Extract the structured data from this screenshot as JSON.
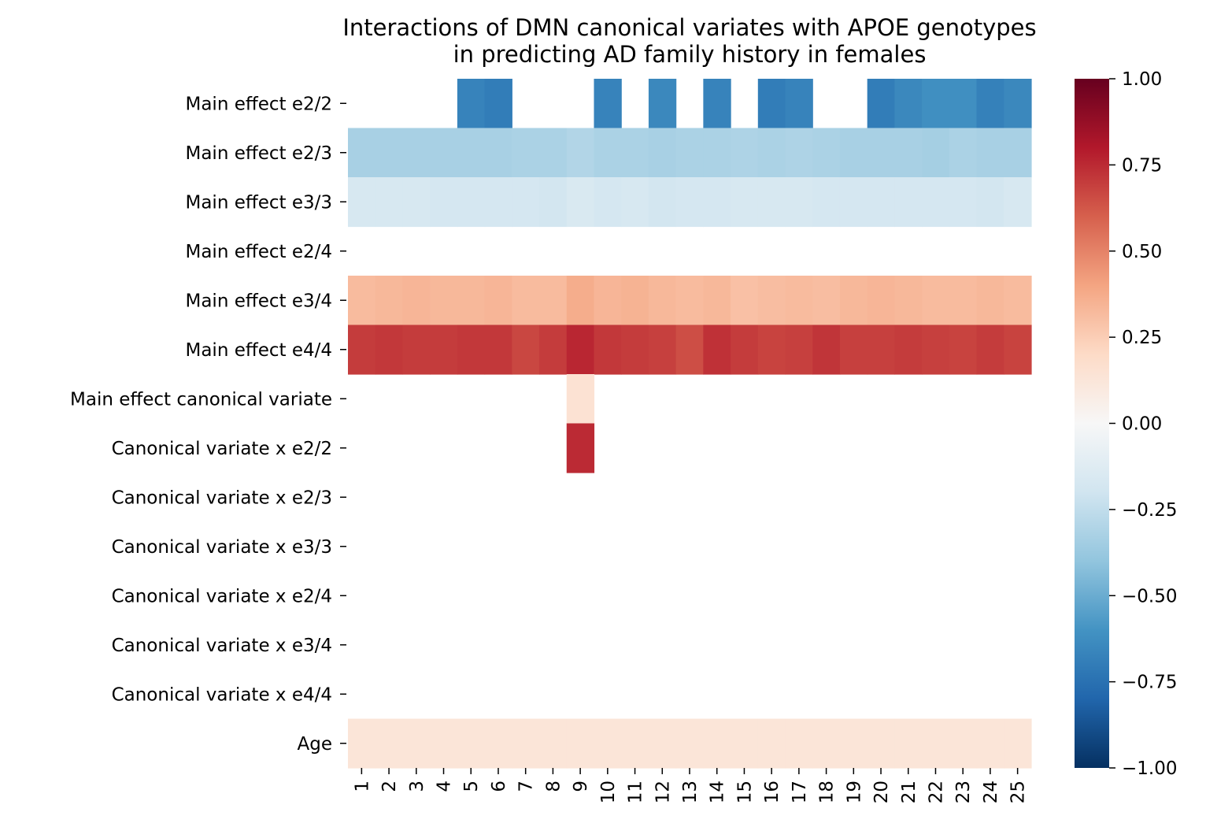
{
  "chart_data": {
    "type": "heatmap",
    "title": "Interactions of DMN canonical variates with APOE genotypes\nin predicting AD family history in females",
    "xlabel": "",
    "ylabel": "",
    "x_categories": [
      "1",
      "2",
      "3",
      "4",
      "5",
      "6",
      "7",
      "8",
      "9",
      "10",
      "11",
      "12",
      "13",
      "14",
      "15",
      "16",
      "17",
      "18",
      "19",
      "20",
      "21",
      "22",
      "23",
      "24",
      "25"
    ],
    "y_categories": [
      "Main effect e2/2",
      "Main effect e2/3",
      "Main effect e3/3",
      "Main effect e2/4",
      "Main effect e3/4",
      "Main effect e4/4",
      "Main effect canonical variate",
      "Canonical variate x e2/2",
      "Canonical variate x e2/3",
      "Canonical variate x e3/3",
      "Canonical variate x e2/4",
      "Canonical variate x e3/4",
      "Canonical variate x e4/4",
      "Age"
    ],
    "values": [
      [
        null,
        null,
        null,
        null,
        -0.67,
        -0.7,
        null,
        null,
        null,
        -0.67,
        null,
        -0.65,
        null,
        -0.67,
        null,
        -0.7,
        -0.67,
        null,
        null,
        -0.7,
        -0.65,
        -0.62,
        -0.62,
        -0.68,
        -0.65
      ],
      [
        -0.33,
        -0.33,
        -0.33,
        -0.33,
        -0.33,
        -0.33,
        -0.32,
        -0.32,
        -0.3,
        -0.32,
        -0.32,
        -0.33,
        -0.32,
        -0.32,
        -0.31,
        -0.32,
        -0.31,
        -0.32,
        -0.33,
        -0.33,
        -0.33,
        -0.34,
        -0.32,
        -0.33,
        -0.33
      ],
      [
        -0.17,
        -0.17,
        -0.17,
        -0.18,
        -0.18,
        -0.18,
        -0.18,
        -0.19,
        -0.16,
        -0.18,
        -0.17,
        -0.19,
        -0.18,
        -0.18,
        -0.17,
        -0.17,
        -0.17,
        -0.18,
        -0.18,
        -0.18,
        -0.18,
        -0.18,
        -0.18,
        -0.19,
        -0.17
      ],
      [
        null,
        null,
        null,
        null,
        null,
        null,
        null,
        null,
        null,
        null,
        null,
        null,
        null,
        null,
        null,
        null,
        null,
        null,
        null,
        null,
        null,
        null,
        null,
        null,
        null
      ],
      [
        0.32,
        0.33,
        0.34,
        0.33,
        0.33,
        0.34,
        0.32,
        0.32,
        0.37,
        0.34,
        0.35,
        0.33,
        0.32,
        0.33,
        0.3,
        0.31,
        0.32,
        0.31,
        0.33,
        0.34,
        0.33,
        0.32,
        0.32,
        0.33,
        0.32
      ],
      [
        0.7,
        0.71,
        0.7,
        0.7,
        0.71,
        0.71,
        0.67,
        0.7,
        0.76,
        0.71,
        0.7,
        0.69,
        0.65,
        0.73,
        0.7,
        0.68,
        0.69,
        0.72,
        0.69,
        0.69,
        0.7,
        0.69,
        0.68,
        0.7,
        0.68
      ],
      [
        null,
        null,
        null,
        null,
        null,
        null,
        null,
        null,
        0.15,
        null,
        null,
        null,
        null,
        null,
        null,
        null,
        null,
        null,
        null,
        null,
        null,
        null,
        null,
        null,
        null
      ],
      [
        null,
        null,
        null,
        null,
        null,
        null,
        null,
        null,
        0.75,
        null,
        null,
        null,
        null,
        null,
        null,
        null,
        null,
        null,
        null,
        null,
        null,
        null,
        null,
        null,
        null
      ],
      [
        null,
        null,
        null,
        null,
        null,
        null,
        null,
        null,
        null,
        null,
        null,
        null,
        null,
        null,
        null,
        null,
        null,
        null,
        null,
        null,
        null,
        null,
        null,
        null,
        null
      ],
      [
        null,
        null,
        null,
        null,
        null,
        null,
        null,
        null,
        null,
        null,
        null,
        null,
        null,
        null,
        null,
        null,
        null,
        null,
        null,
        null,
        null,
        null,
        null,
        null,
        null
      ],
      [
        null,
        null,
        null,
        null,
        null,
        null,
        null,
        null,
        null,
        null,
        null,
        null,
        null,
        null,
        null,
        null,
        null,
        null,
        null,
        null,
        null,
        null,
        null,
        null,
        null
      ],
      [
        null,
        null,
        null,
        null,
        null,
        null,
        null,
        null,
        null,
        null,
        null,
        null,
        null,
        null,
        null,
        null,
        null,
        null,
        null,
        null,
        null,
        null,
        null,
        null,
        null
      ],
      [
        null,
        null,
        null,
        null,
        null,
        null,
        null,
        null,
        null,
        null,
        null,
        null,
        null,
        null,
        null,
        null,
        null,
        null,
        null,
        null,
        null,
        null,
        null,
        null,
        null
      ],
      [
        0.13,
        0.13,
        0.13,
        0.13,
        0.13,
        0.13,
        0.13,
        0.13,
        0.13,
        0.13,
        0.13,
        0.13,
        0.13,
        0.13,
        0.13,
        0.13,
        0.13,
        0.13,
        0.13,
        0.13,
        0.13,
        0.13,
        0.13,
        0.13,
        0.13
      ]
    ],
    "colormap": "RdBu_r",
    "colorbar": {
      "vmin": -1.0,
      "vmax": 1.0,
      "ticks": [
        1.0,
        0.75,
        0.5,
        0.25,
        0.0,
        -0.25,
        -0.5,
        -0.75,
        -1.0
      ],
      "tick_labels": [
        "1.00",
        "0.75",
        "0.50",
        "0.25",
        "0.00",
        "−0.25",
        "−0.50",
        "−0.75",
        "−1.00"
      ]
    },
    "grid": false,
    "colormap_stops": [
      "#053061",
      "#2166ac",
      "#4393c3",
      "#92c5de",
      "#d1e5f0",
      "#f7f7f7",
      "#fddbc7",
      "#f4a582",
      "#d6604d",
      "#b2182b",
      "#67001f"
    ]
  }
}
